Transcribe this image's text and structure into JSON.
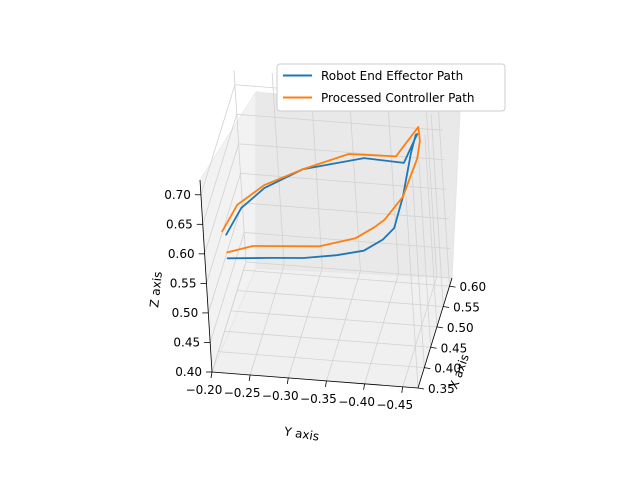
{
  "chart_data": {
    "type": "line",
    "projection": "3d",
    "xlabel": "X axis",
    "ylabel": "Y axis",
    "zlabel": "Z axis",
    "x_ticks": [
      "0.35",
      "0.40",
      "0.45",
      "0.50",
      "0.55",
      "0.60"
    ],
    "y_ticks": [
      "−0.20",
      "−0.25",
      "−0.30",
      "−0.35",
      "−0.40",
      "−0.45"
    ],
    "z_ticks": [
      "0.40",
      "0.45",
      "0.50",
      "0.55",
      "0.60",
      "0.65",
      "0.70"
    ],
    "grid": true,
    "legend_position": "top-right",
    "series": [
      {
        "name": "Robot End Effector Path",
        "color": "#1f77b4",
        "points": [
          {
            "x": 0.4,
            "y": -0.22,
            "z": 0.6
          },
          {
            "x": 0.41,
            "y": -0.24,
            "z": 0.64
          },
          {
            "x": 0.42,
            "y": -0.27,
            "z": 0.67
          },
          {
            "x": 0.43,
            "y": -0.32,
            "z": 0.7
          },
          {
            "x": 0.44,
            "y": -0.4,
            "z": 0.72
          },
          {
            "x": 0.45,
            "y": -0.45,
            "z": 0.71
          },
          {
            "x": 0.55,
            "y": -0.45,
            "z": 0.69
          },
          {
            "x": 0.59,
            "y": -0.44,
            "z": 0.66
          },
          {
            "x": 0.6,
            "y": -0.43,
            "z": 0.62
          },
          {
            "x": 0.58,
            "y": -0.42,
            "z": 0.56
          },
          {
            "x": 0.56,
            "y": -0.41,
            "z": 0.52
          },
          {
            "x": 0.53,
            "y": -0.4,
            "z": 0.52
          },
          {
            "x": 0.5,
            "y": -0.38,
            "z": 0.52
          },
          {
            "x": 0.47,
            "y": -0.35,
            "z": 0.53
          },
          {
            "x": 0.45,
            "y": -0.31,
            "z": 0.535
          },
          {
            "x": 0.43,
            "y": -0.27,
            "z": 0.545
          },
          {
            "x": 0.4,
            "y": -0.22,
            "z": 0.56
          }
        ]
      },
      {
        "name": "Processed Controller Path",
        "color": "#ff7f0e",
        "points": [
          {
            "x": 0.4,
            "y": -0.215,
            "z": 0.605
          },
          {
            "x": 0.41,
            "y": -0.235,
            "z": 0.645
          },
          {
            "x": 0.42,
            "y": -0.27,
            "z": 0.675
          },
          {
            "x": 0.43,
            "y": -0.32,
            "z": 0.7
          },
          {
            "x": 0.44,
            "y": -0.38,
            "z": 0.725
          },
          {
            "x": 0.45,
            "y": -0.44,
            "z": 0.72
          },
          {
            "x": 0.56,
            "y": -0.45,
            "z": 0.695
          },
          {
            "x": 0.59,
            "y": -0.445,
            "z": 0.65
          },
          {
            "x": 0.59,
            "y": -0.44,
            "z": 0.62
          },
          {
            "x": 0.58,
            "y": -0.42,
            "z": 0.56
          },
          {
            "x": 0.55,
            "y": -0.4,
            "z": 0.54
          },
          {
            "x": 0.53,
            "y": -0.39,
            "z": 0.54
          },
          {
            "x": 0.5,
            "y": -0.37,
            "z": 0.54
          },
          {
            "x": 0.46,
            "y": -0.33,
            "z": 0.55
          },
          {
            "x": 0.44,
            "y": -0.29,
            "z": 0.56
          },
          {
            "x": 0.42,
            "y": -0.25,
            "z": 0.57
          },
          {
            "x": 0.4,
            "y": -0.22,
            "z": 0.57
          }
        ]
      }
    ]
  }
}
